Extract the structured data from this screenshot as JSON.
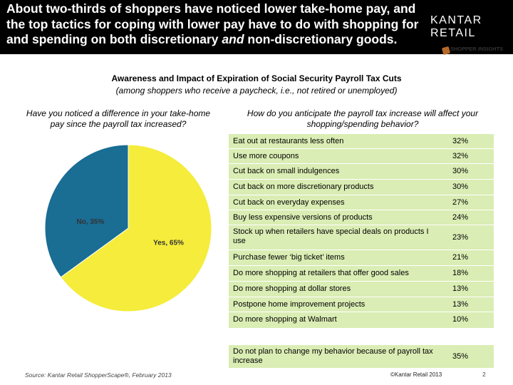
{
  "header": {
    "headline_line1": "About two-thirds of shoppers have noticed lower take-home pay, and",
    "headline_line2": "the top tactics for coping with lower pay have to do with shopping for",
    "headline_line3_a": "and spending on both discretionary ",
    "headline_line3_em": "and",
    "headline_line3_b": " non-discretionary goods.",
    "brand_word1": "KANTAR",
    "brand_word2": "RETAIL",
    "sub_logo": "SHOPPER INSIGHTS"
  },
  "colors": {
    "header_bg": "#000000",
    "pie_yes": "#f5ec3b",
    "pie_no": "#1a6d93",
    "table_row": "#daedb4"
  },
  "chart_data": [
    {
      "type": "pie",
      "title": "Awareness and Impact of Expiration of Social Security Payroll Tax Cuts",
      "subtitle": "(among shoppers who receive a paycheck, i.e., not retired or unemployed)",
      "question": "Have you noticed a difference in your take-home pay since the payroll tax increased?",
      "slices": [
        {
          "label": "Yes, 65%",
          "value": 65,
          "color": "#f5ec3b"
        },
        {
          "label": "No, 35%",
          "value": 35,
          "color": "#1a6d93"
        }
      ]
    },
    {
      "type": "table",
      "question": "How do you anticipate the payroll tax increase will affect your shopping/spending behavior?",
      "rows": [
        {
          "label": "Eat out at restaurants less often",
          "value": "32%"
        },
        {
          "label": "Use more coupons",
          "value": "32%"
        },
        {
          "label": "Cut back on small indulgences",
          "value": "30%"
        },
        {
          "label": "Cut back on more discretionary products",
          "value": "30%"
        },
        {
          "label": "Cut back on everyday expenses",
          "value": "27%"
        },
        {
          "label": "Buy less expensive versions of products",
          "value": "24%"
        },
        {
          "label": "Stock up when retailers have special deals on products I use",
          "value": "23%"
        },
        {
          "label": "Purchase fewer ‘big ticket’ items",
          "value": "21%"
        },
        {
          "label": "Do more shopping at retailers that offer good sales",
          "value": "18%"
        },
        {
          "label": "Do more shopping at dollar stores",
          "value": "13%"
        },
        {
          "label": "Postpone home improvement projects",
          "value": "13%"
        },
        {
          "label": "Do more shopping at Walmart",
          "value": "10%"
        },
        {
          "label": "Do not plan to change my behavior because of payroll tax increase",
          "value": "35%"
        }
      ]
    }
  ],
  "footer": {
    "source": "Source: Kantar Retail ShopperScape®, February 2013",
    "copyright": "©Kantar Retail 2013",
    "page": "2"
  }
}
